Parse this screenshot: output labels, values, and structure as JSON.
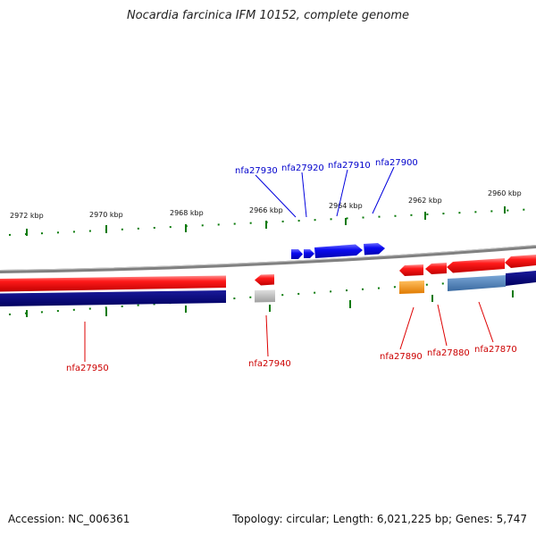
{
  "title": "Nocardia farcinica IFM 10152, complete genome",
  "accession": "Accession: NC_006361",
  "stats": "Topology: circular; Length: 6,021,225 bp; Genes: 5,747",
  "ruler_labels": [
    "2972 kbp",
    "2970 kbp",
    "2968 kbp",
    "2966 kbp",
    "2964 kbp",
    "2962 kbp",
    "2960 kbp"
  ],
  "gene_labels": {
    "nfa27930": "nfa27930",
    "nfa27920": "nfa27920",
    "nfa27910": "nfa27910",
    "nfa27900": "nfa27900",
    "nfa27950": "nfa27950",
    "nfa27940": "nfa27940",
    "nfa27890": "nfa27890",
    "nfa27880": "nfa27880",
    "nfa27870": "nfa27870"
  },
  "colors": {
    "forward_gene": "#0a0af0",
    "reverse_gene": "#ee0a0a",
    "reverse_shadow": "#000080",
    "backbone": "#888888",
    "tick": "#0a7a0a",
    "orange_gene": "#ff9900",
    "grey_gene": "#b0b0b0",
    "steel_gene": "#4a7fb5"
  }
}
